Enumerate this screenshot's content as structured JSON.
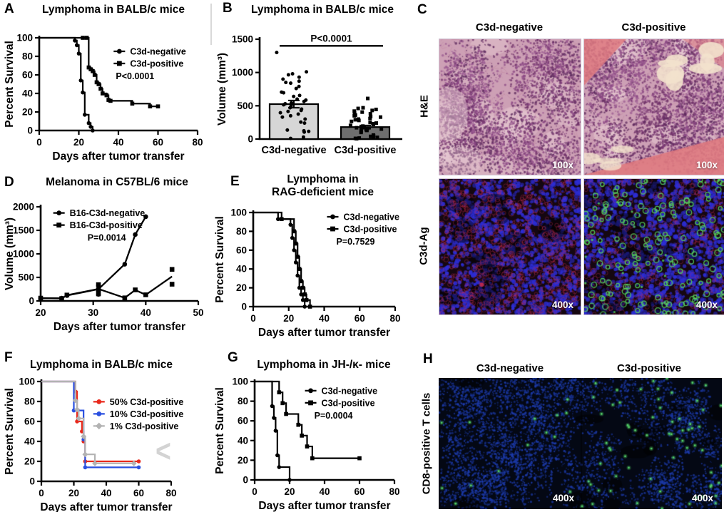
{
  "figure_bg": "#ffffff",
  "icons": {
    "chevron_left": "<"
  },
  "decor": {
    "divider_color": "#d9d9d9"
  },
  "panels": {
    "A": {
      "letter": "A"
    },
    "B": {
      "letter": "B"
    },
    "C": {
      "letter": "C"
    },
    "D": {
      "letter": "D"
    },
    "E": {
      "letter": "E"
    },
    "F": {
      "letter": "F"
    },
    "G": {
      "letter": "G"
    },
    "H": {
      "letter": "H"
    }
  },
  "chart_data": [
    {
      "id": "A",
      "type": "survival",
      "title": "Lymphoma in BALB/c mice",
      "xlabel": "Days after tumor transfer",
      "ylabel": "Percent Survival",
      "xlim": [
        0,
        80
      ],
      "ylim": [
        0,
        100
      ],
      "xticks": [
        0,
        20,
        40,
        60,
        80
      ],
      "yticks": [
        0,
        20,
        40,
        60,
        80,
        100
      ],
      "pvalue": "P<0.0001",
      "pvalue_dx": 30,
      "legend_pos": "inside-right",
      "grid": false,
      "series": [
        {
          "name": "C3d-negative",
          "marker": "circle",
          "color": "#000000",
          "steps": [
            [
              0,
              100
            ],
            [
              18,
              100
            ],
            [
              18,
              97
            ],
            [
              19,
              92
            ],
            [
              20,
              83
            ],
            [
              21,
              54
            ],
            [
              22,
              41
            ],
            [
              23,
              17
            ],
            [
              25,
              8
            ],
            [
              26,
              4
            ],
            [
              27,
              0
            ]
          ]
        },
        {
          "name": "C3d-positive",
          "marker": "square",
          "color": "#000000",
          "extra_marks": [
            [
              22,
              100
            ],
            [
              24,
              100
            ]
          ],
          "steps": [
            [
              0,
              100
            ],
            [
              22,
              100
            ],
            [
              24,
              100
            ],
            [
              25,
              68
            ],
            [
              26,
              66
            ],
            [
              27,
              64
            ],
            [
              28,
              60
            ],
            [
              29,
              52
            ],
            [
              30,
              50
            ],
            [
              31,
              45
            ],
            [
              32,
              40
            ],
            [
              34,
              38
            ],
            [
              35,
              33
            ],
            [
              36,
              32
            ],
            [
              47,
              29
            ],
            [
              56,
              26
            ],
            [
              60,
              26
            ]
          ]
        }
      ]
    },
    {
      "id": "B",
      "type": "scatterbar",
      "title": "Lymphoma in BALB/c mice",
      "ylabel": "Volume (mm³)",
      "ylim": [
        0,
        1500
      ],
      "yticks": [
        0,
        500,
        1000,
        1500
      ],
      "sig": {
        "text": "P<0.0001",
        "line_y": 1400
      },
      "grid": false,
      "groups": [
        {
          "label": "C3d-negative",
          "bar": 525,
          "sem": 55,
          "fill": "#d6d6d6",
          "values": [
            1300,
            1010,
            980,
            965,
            930,
            900,
            870,
            850,
            840,
            790,
            760,
            705,
            695,
            655,
            640,
            600,
            585,
            565,
            545,
            530,
            515,
            500,
            470,
            450,
            430,
            415,
            395,
            375,
            350,
            330,
            300,
            255,
            240,
            135,
            125,
            115,
            105,
            30,
            10
          ]
        },
        {
          "label": "C3d-positive",
          "bar": 180,
          "sem": 25,
          "fill": "#6f6f6f",
          "values": [
            610,
            470,
            460,
            445,
            430,
            420,
            405,
            390,
            380,
            360,
            350,
            340,
            330,
            310,
            300,
            290,
            280,
            265,
            250,
            240,
            230,
            220,
            205,
            195,
            185,
            170,
            160,
            150,
            140,
            130,
            120,
            100,
            60,
            50,
            40,
            30,
            25,
            15,
            10,
            5
          ]
        }
      ]
    },
    {
      "id": "D",
      "type": "growth",
      "title": "Melanoma in C57BL/6 mice",
      "xlabel": "Days after tumor transfer",
      "ylabel": "Volume (mm³)",
      "xlim": [
        20,
        50
      ],
      "ylim": [
        0,
        2000
      ],
      "xticks": [
        20,
        30,
        40,
        50
      ],
      "yticks": [
        0,
        500,
        1000,
        1500,
        2000
      ],
      "pvalue": "P=0.0014",
      "pvalue_dx": 75,
      "legend_pos": "inside-left",
      "grid": false,
      "series": [
        {
          "name": "B16-C3d-negative",
          "marker": "circle",
          "color": "#000000",
          "points": [
            [
              20,
              55
            ],
            [
              24,
              60
            ],
            [
              25,
              115
            ],
            [
              31,
              140
            ],
            [
              31,
              200
            ],
            [
              31,
              255
            ],
            [
              31,
              320
            ],
            [
              36,
              780
            ],
            [
              38,
              1410
            ],
            [
              40,
              1790
            ]
          ],
          "line": [
            [
              20,
              55
            ],
            [
              24,
              58
            ],
            [
              25,
              115
            ],
            [
              31,
              250
            ],
            [
              36,
              780
            ],
            [
              38,
              1410
            ],
            [
              40,
              1790
            ]
          ]
        },
        {
          "name": "B16-C3d-positive",
          "marker": "square",
          "color": "#000000",
          "points": [
            [
              20,
              60
            ],
            [
              24,
              50
            ],
            [
              25,
              125
            ],
            [
              31,
              150
            ],
            [
              31,
              235
            ],
            [
              31,
              345
            ],
            [
              36,
              65
            ],
            [
              38,
              235
            ],
            [
              40,
              130
            ],
            [
              45,
              355
            ],
            [
              45,
              670
            ]
          ],
          "line": [
            [
              20,
              60
            ],
            [
              24,
              52
            ],
            [
              25,
              122
            ],
            [
              31,
              255
            ],
            [
              36,
              65
            ],
            [
              38,
              232
            ],
            [
              40,
              130
            ],
            [
              45,
              520
            ]
          ]
        }
      ]
    },
    {
      "id": "E",
      "type": "survival",
      "title": "Lymphoma in\nRAG-deficient mice",
      "xlabel": "Days after tumor transfer",
      "ylabel": "Percent Survival",
      "xlim": [
        0,
        80
      ],
      "ylim": [
        0,
        100
      ],
      "xticks": [
        0,
        20,
        40,
        60,
        80
      ],
      "yticks": [
        0,
        20,
        40,
        60,
        80,
        100
      ],
      "pvalue": "P=0.7529",
      "pvalue_dx": 40,
      "legend_pos": "inside-right",
      "grid": false,
      "series": [
        {
          "name": "C3d-negative",
          "marker": "circle",
          "color": "#000000",
          "steps": [
            [
              0,
              100
            ],
            [
              14,
              100
            ],
            [
              14,
              93
            ],
            [
              21,
              87
            ],
            [
              22,
              73
            ],
            [
              23,
              60
            ],
            [
              24,
              47
            ],
            [
              25,
              33
            ],
            [
              26,
              20
            ],
            [
              27,
              13
            ],
            [
              28,
              7
            ],
            [
              29,
              0
            ]
          ]
        },
        {
          "name": "C3d-positive",
          "marker": "square",
          "color": "#000000",
          "steps": [
            [
              0,
              100
            ],
            [
              16,
              100
            ],
            [
              16,
              93
            ],
            [
              22,
              93
            ],
            [
              23,
              80
            ],
            [
              24,
              67
            ],
            [
              25,
              53
            ],
            [
              26,
              40
            ],
            [
              27,
              27
            ],
            [
              28,
              20
            ],
            [
              29,
              13
            ],
            [
              30,
              7
            ],
            [
              32,
              0
            ]
          ]
        }
      ]
    },
    {
      "id": "F",
      "type": "survival",
      "title": "Lymphoma in BALB/c mice",
      "xlabel": "Days after tumor transfer",
      "ylabel": "Percent Survival",
      "xlim": [
        0,
        80
      ],
      "ylim": [
        0,
        100
      ],
      "xticks": [
        0,
        20,
        40,
        60,
        80
      ],
      "yticks": [
        0,
        20,
        40,
        60,
        80,
        100
      ],
      "pvalue": "",
      "pvalue_dx": 0,
      "legend_pos": "inside-right",
      "grid": false,
      "series": [
        {
          "name": "50% C3d-positive",
          "marker": "circle",
          "color": "#e8291c",
          "steps": [
            [
              0,
              100
            ],
            [
              21,
              100
            ],
            [
              21,
              90
            ],
            [
              22,
              60
            ],
            [
              24,
              60
            ],
            [
              25,
              50
            ],
            [
              26,
              40
            ],
            [
              27,
              20
            ],
            [
              60,
              20
            ]
          ]
        },
        {
          "name": "10% C3d-positive",
          "marker": "circle",
          "color": "#2a50e0",
          "steps": [
            [
              0,
              100
            ],
            [
              20,
              100
            ],
            [
              20,
              71
            ],
            [
              25,
              71
            ],
            [
              26,
              42
            ],
            [
              27,
              14
            ],
            [
              60,
              14
            ]
          ]
        },
        {
          "name": "1% C3d-positive",
          "marker": "diamond",
          "color": "#b3b3b3",
          "steps": [
            [
              0,
              100
            ],
            [
              21,
              100
            ],
            [
              21,
              81
            ],
            [
              22,
              72
            ],
            [
              23,
              63
            ],
            [
              26,
              63
            ],
            [
              26,
              45
            ],
            [
              27,
              27
            ],
            [
              32,
              27
            ],
            [
              33,
              18
            ],
            [
              57,
              18
            ]
          ]
        }
      ]
    },
    {
      "id": "G",
      "type": "survival",
      "title": "Lymphoma in JH-/κ- mice",
      "xlabel": "Days after tumor transfer",
      "ylabel": "Percent Survival",
      "xlim": [
        0,
        80
      ],
      "ylim": [
        0,
        100
      ],
      "xticks": [
        0,
        20,
        40,
        60,
        80
      ],
      "yticks": [
        0,
        20,
        40,
        60,
        80,
        100
      ],
      "pvalue": "P=0.0004",
      "pvalue_dx": 40,
      "legend_pos": "inside-right",
      "grid": false,
      "series": [
        {
          "name": "C3d-negative",
          "marker": "circle",
          "color": "#000000",
          "steps": [
            [
              0,
              100
            ],
            [
              10,
              100
            ],
            [
              10,
              75
            ],
            [
              11,
              63
            ],
            [
              12,
              50
            ],
            [
              13,
              25
            ],
            [
              14,
              13
            ],
            [
              19,
              13
            ],
            [
              20,
              0
            ]
          ]
        },
        {
          "name": "C3d-positive",
          "marker": "square",
          "color": "#000000",
          "steps": [
            [
              0,
              100
            ],
            [
              14,
              100
            ],
            [
              14,
              89
            ],
            [
              16,
              78
            ],
            [
              18,
              67
            ],
            [
              25,
              56
            ],
            [
              27,
              45
            ],
            [
              30,
              34
            ],
            [
              33,
              22
            ],
            [
              60,
              22
            ]
          ]
        }
      ]
    }
  ],
  "micro": {
    "C": {
      "col_headers": [
        "C3d-negative",
        "C3d-positive"
      ],
      "rows": [
        {
          "label": "H&E",
          "mag": "100x"
        },
        {
          "label": "C3d-Ag",
          "mag": "400x"
        }
      ]
    },
    "H": {
      "col_headers": [
        "C3d-negative",
        "C3d-positive"
      ],
      "row_label": "CD8-positive T cells",
      "mag": "400x"
    },
    "styles": {
      "he": {
        "bg": "#cda0b5",
        "nuclei": [
          "#6f3068",
          "#8a4583",
          "#5c2a5e",
          "#9b5b92"
        ],
        "stroma": "#bf809c",
        "light": "#e6c9d2",
        "muscle": "#df7a80",
        "cream": "#f3e2cd"
      },
      "iff": {
        "bg": "#150711",
        "cell": "#2d2dd6",
        "red": "#c22a50",
        "green": "#55d45c"
      },
      "cd8": {
        "bg": "#040814",
        "cell": "#1d3cb0",
        "green": "#57da6c"
      }
    }
  }
}
